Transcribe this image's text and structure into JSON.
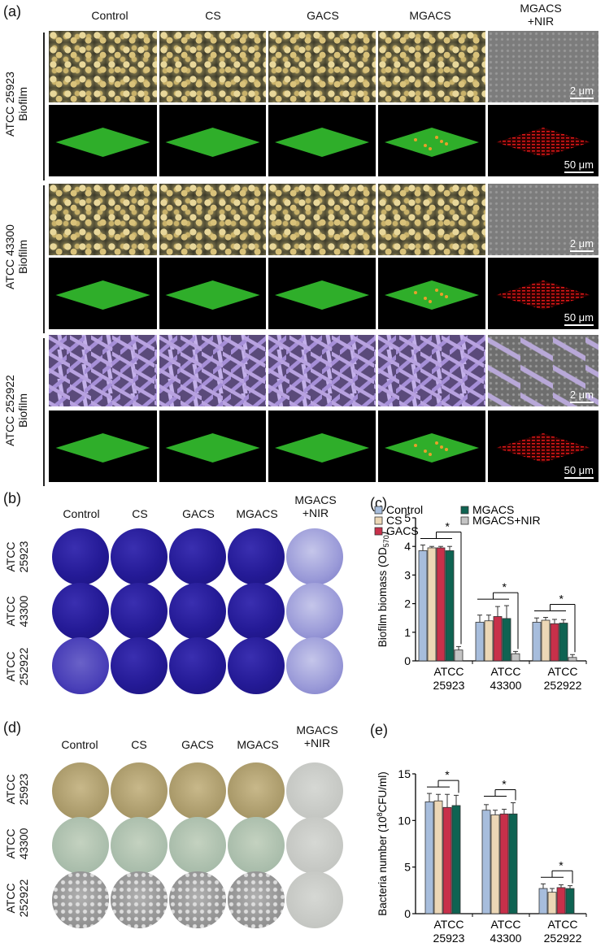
{
  "panels": {
    "a": "(a)",
    "b": "(b)",
    "c": "(c)",
    "d": "(d)",
    "e": "(e)"
  },
  "columns": [
    "Control",
    "CS",
    "GACS",
    "MGACS"
  ],
  "col_nir": [
    "MGACS",
    "+NIR"
  ],
  "rows_a": [
    {
      "line1": "ATCC 25923",
      "line2": "Biofilm"
    },
    {
      "line1": "ATCC 43300",
      "line2": "Biofilm"
    },
    {
      "line1": "ATCC 252922",
      "line2": "Biofilm"
    }
  ],
  "scale_sem": "2 μm",
  "scale_conf": "50 μm",
  "strains": [
    {
      "l1": "ATCC",
      "l2": "25923"
    },
    {
      "l1": "ATCC",
      "l2": "43300"
    },
    {
      "l1": "ATCC",
      "l2": "252922"
    }
  ],
  "colors": {
    "Control": "#a7bddc",
    "CS": "#ecd7b6",
    "GACS": "#c8304a",
    "MGACS": "#0f6352",
    "MGACS+NIR": "#c4c4c4"
  },
  "chart_data": [
    {
      "type": "bar",
      "panel": "c",
      "categories": [
        "ATCC 25923",
        "ATCC 43300",
        "ATCC 252922"
      ],
      "series": [
        {
          "name": "Control",
          "values": [
            3.85,
            1.35,
            1.35
          ],
          "err": [
            0.2,
            0.25,
            0.15
          ]
        },
        {
          "name": "CS",
          "values": [
            3.95,
            1.4,
            1.42
          ],
          "err": [
            0.05,
            0.2,
            0.1
          ]
        },
        {
          "name": "GACS",
          "values": [
            3.95,
            1.55,
            1.3
          ],
          "err": [
            0.05,
            0.35,
            0.15
          ]
        },
        {
          "name": "MGACS",
          "values": [
            3.85,
            1.48,
            1.32
          ],
          "err": [
            0.15,
            0.45,
            0.12
          ]
        },
        {
          "name": "MGACS+NIR",
          "values": [
            0.38,
            0.25,
            0.12
          ],
          "err": [
            0.12,
            0.08,
            0.1
          ]
        }
      ],
      "ylabel": "Biofilm biomass (OD",
      "ylabel_sub": "570",
      "ylabel_end": ")",
      "ylim": [
        0,
        5
      ],
      "yticks": [
        "0",
        "1",
        "2",
        "3",
        "4",
        "5"
      ],
      "annotation": "*",
      "legend": "top"
    },
    {
      "type": "bar",
      "panel": "e",
      "categories": [
        "ATCC 25923",
        "ATCC 43300",
        "ATCC 252922"
      ],
      "series": [
        {
          "name": "Control",
          "values": [
            12.0,
            11.1,
            2.7
          ],
          "err": [
            0.9,
            0.6,
            0.5
          ]
        },
        {
          "name": "CS",
          "values": [
            12.1,
            10.6,
            2.3
          ],
          "err": [
            0.7,
            0.5,
            0.4
          ]
        },
        {
          "name": "GACS",
          "values": [
            11.4,
            10.7,
            2.8
          ],
          "err": [
            1.4,
            0.5,
            0.3
          ]
        },
        {
          "name": "MGACS",
          "values": [
            11.6,
            10.7,
            2.7
          ],
          "err": [
            1.1,
            1.2,
            0.3
          ]
        }
      ],
      "ylabel": "Bacteria number (10",
      "ylabel_sup": "8",
      "ylabel_end": "CFU/ml)",
      "ylim": [
        0,
        15
      ],
      "yticks": [
        "0",
        "5",
        "10",
        "15"
      ],
      "annotation": "*"
    }
  ]
}
